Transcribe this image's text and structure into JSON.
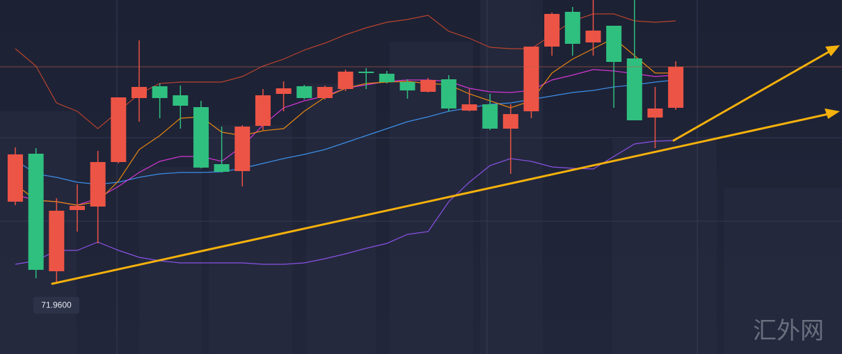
{
  "chart_data": {
    "type": "candlestick",
    "ylim": [
      70.95,
      76.04
    ],
    "up_color": "#ec5445",
    "down_color": "#2fbf7f",
    "open": [
      73.14,
      73.83,
      72.14,
      73.02,
      73.07,
      73.71,
      74.63,
      74.8,
      74.67,
      74.5,
      73.68,
      73.58,
      74.23,
      74.69,
      74.8,
      74.63,
      74.76,
      75.01,
      74.98,
      74.86,
      74.72,
      74.9,
      74.45,
      74.54,
      74.19,
      74.44,
      75.37,
      75.87,
      75.43,
      75.67,
      75.2,
      74.35,
      74.49
    ],
    "high": [
      73.92,
      73.91,
      73.19,
      73.39,
      73.87,
      74.64,
      75.46,
      74.84,
      74.81,
      74.59,
      74.22,
      74.24,
      74.76,
      74.87,
      74.82,
      74.81,
      75.04,
      75.06,
      75.02,
      74.9,
      74.92,
      74.96,
      74.76,
      74.69,
      74.54,
      75.37,
      75.86,
      75.94,
      76.04,
      75.67,
      76.04,
      74.79,
      75.16
    ],
    "low": [
      73.09,
      72.04,
      71.96,
      72.71,
      72.54,
      73.69,
      74.29,
      74.34,
      74.19,
      73.62,
      73.56,
      73.36,
      74.17,
      74.44,
      74.61,
      74.61,
      74.73,
      74.76,
      74.84,
      74.62,
      74.71,
      74.44,
      74.44,
      74.17,
      73.54,
      74.34,
      75.24,
      75.24,
      75.24,
      74.49,
      74.31,
      73.91,
      74.46
    ],
    "close": [
      73.82,
      72.16,
      73.01,
      73.08,
      73.71,
      74.64,
      74.79,
      74.63,
      74.52,
      73.63,
      73.57,
      74.22,
      74.67,
      74.77,
      74.63,
      74.79,
      75.01,
      74.99,
      74.86,
      74.74,
      74.89,
      74.48,
      74.54,
      74.19,
      74.4,
      75.37,
      75.84,
      75.41,
      75.6,
      75.15,
      74.31,
      74.48,
      75.08
    ],
    "lines": [
      {
        "color": "#b8442e",
        "values": [
          75.34,
          75.09,
          74.56,
          74.44,
          74.19,
          74.44,
          74.69,
          74.84,
          74.86,
          74.86,
          74.86,
          74.94,
          75.09,
          75.19,
          75.32,
          75.42,
          75.54,
          75.64,
          75.72,
          75.76,
          75.82,
          75.59,
          75.49,
          75.36,
          75.34,
          75.34,
          75.54,
          75.74,
          75.84,
          75.84,
          75.74,
          75.72,
          75.74
        ]
      },
      {
        "color": "#8a52e6",
        "values": [
          72.24,
          72.29,
          72.44,
          72.44,
          72.56,
          72.44,
          72.34,
          72.29,
          72.26,
          72.26,
          72.26,
          72.26,
          72.24,
          72.24,
          72.26,
          72.32,
          72.39,
          72.47,
          72.54,
          72.67,
          72.71,
          73.14,
          73.42,
          73.66,
          73.76,
          73.72,
          73.64,
          73.62,
          73.61,
          73.79,
          73.97,
          74.01,
          74.02
        ]
      },
      {
        "color": "#3c8fe8",
        "values": [
          73.74,
          73.54,
          73.49,
          73.42,
          73.39,
          73.42,
          73.49,
          73.54,
          73.56,
          73.56,
          73.57,
          73.62,
          73.69,
          73.76,
          73.82,
          73.89,
          73.99,
          74.09,
          74.19,
          74.29,
          74.36,
          74.44,
          74.49,
          74.54,
          74.56,
          74.61,
          74.66,
          74.71,
          74.74,
          74.79,
          74.82,
          74.86,
          74.89
        ]
      },
      {
        "color": "#d436d4",
        "values": [
          73.24,
          73.16,
          73.14,
          73.09,
          73.19,
          73.36,
          73.56,
          73.72,
          73.79,
          73.79,
          73.72,
          73.94,
          74.24,
          74.49,
          74.59,
          74.66,
          74.77,
          74.82,
          74.87,
          74.89,
          74.89,
          74.87,
          74.77,
          74.72,
          74.71,
          74.74,
          74.89,
          74.96,
          75.04,
          75.02,
          74.98,
          74.94,
          74.96
        ]
      },
      {
        "color": "#e8870f",
        "values": [
          73.39,
          73.16,
          73.14,
          73.09,
          73.14,
          73.44,
          73.89,
          74.09,
          74.34,
          74.36,
          74.14,
          74.09,
          74.16,
          74.19,
          74.44,
          74.64,
          74.77,
          74.84,
          74.86,
          74.87,
          74.84,
          74.82,
          74.69,
          74.59,
          74.49,
          74.59,
          74.99,
          75.19,
          75.34,
          75.49,
          75.24,
          74.99,
          74.99
        ]
      }
    ],
    "annotations": [
      {
        "value": 71.96,
        "label": "71.9600"
      }
    ],
    "watermark": "汇外网"
  }
}
